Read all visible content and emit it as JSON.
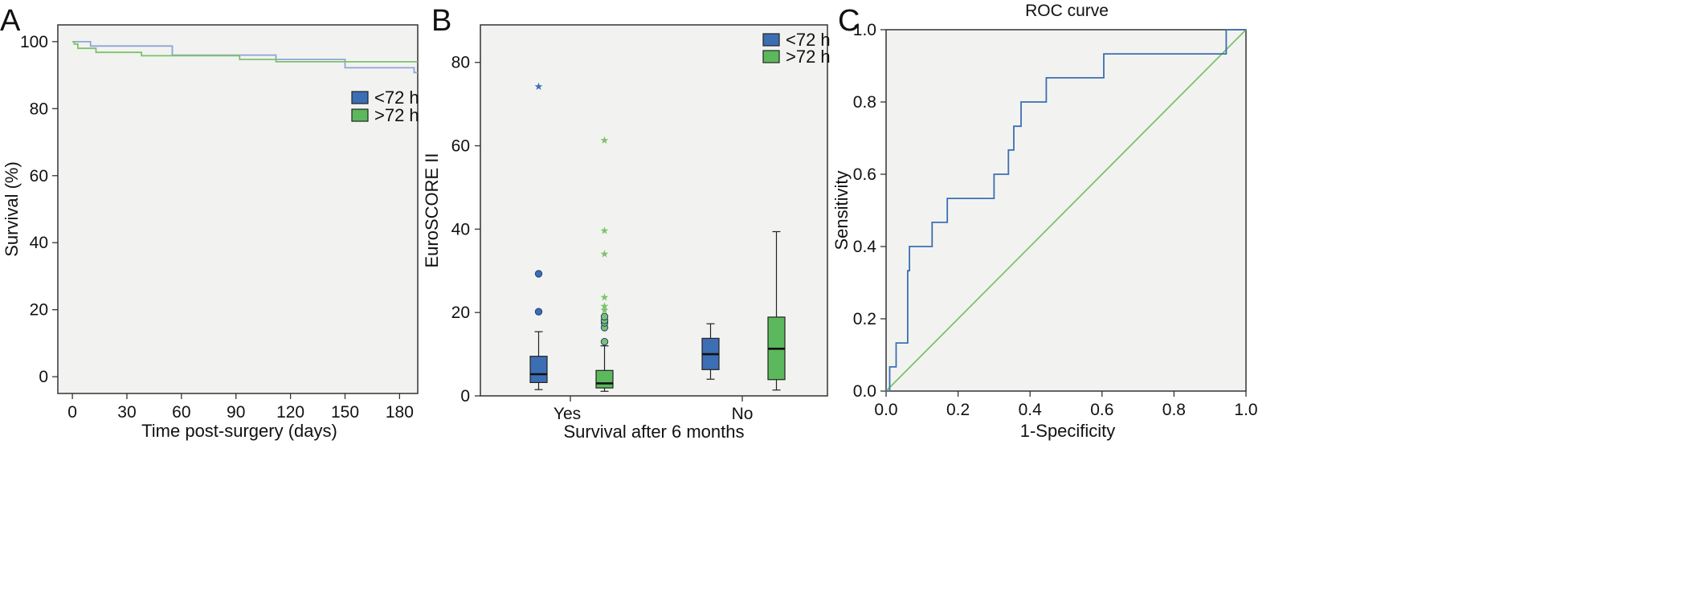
{
  "colors": {
    "blue": "#3c6eb4",
    "blue_light": "#8fa4d8",
    "green": "#7cc26b",
    "green_fill": "#5cb85c",
    "plot_bg": "#f2f3f0"
  },
  "chart_data": [
    {
      "panel": "A",
      "type": "line",
      "xlabel": "Time post-surgery (days)",
      "ylabel": "Survival (%)",
      "xlim": [
        -8,
        190
      ],
      "ylim": [
        -5,
        105
      ],
      "xticks": [
        0,
        30,
        60,
        90,
        120,
        150,
        180
      ],
      "yticks": [
        0,
        20,
        40,
        60,
        80,
        100
      ],
      "legend": "right",
      "series": [
        {
          "name": "<72 h",
          "color": "#8fa4d8",
          "x": [
            0,
            10,
            10,
            55,
            55,
            112,
            112,
            150,
            150,
            188,
            188,
            190
          ],
          "y": [
            100,
            100,
            98.7,
            98.7,
            96,
            96,
            94.7,
            94.7,
            92.2,
            92.2,
            90.8,
            90.8
          ]
        },
        {
          "name": ">72 h",
          "color": "#7cc26b",
          "x": [
            0,
            1,
            1,
            3,
            3,
            13,
            13,
            38,
            38,
            92,
            92,
            112,
            112,
            190
          ],
          "y": [
            100,
            100,
            99.3,
            99.3,
            98,
            98,
            96.8,
            96.8,
            95.8,
            95.8,
            94.7,
            94.7,
            94.0,
            94.0
          ]
        }
      ]
    },
    {
      "panel": "B",
      "type": "box",
      "xlabel": "Survival after 6 months",
      "ylabel": "EuroSCORE II",
      "categories": [
        "Yes",
        "No"
      ],
      "ylim": [
        0,
        89
      ],
      "yticks": [
        0,
        20,
        40,
        60,
        80
      ],
      "legend": "top-right",
      "series": [
        {
          "name": "<72 h",
          "color": "#3c6eb4",
          "boxes": [
            {
              "category": "Yes",
              "min": 1.5,
              "q1": 3.2,
              "median": 5.2,
              "q3": 9.5,
              "max": 15.4,
              "outliers": [
                20.2,
                29.3
              ],
              "extremes": [
                74.2
              ]
            },
            {
              "category": "No",
              "min": 4,
              "q1": 6.3,
              "median": 10,
              "q3": 13.8,
              "max": 17.3,
              "outliers": [],
              "extremes": []
            }
          ]
        },
        {
          "name": ">72 h",
          "color": "#5cb85c",
          "boxes": [
            {
              "category": "Yes",
              "min": 1.1,
              "q1": 1.9,
              "median": 3.0,
              "q3": 6.1,
              "max": 12.0,
              "outliers": [
                13.0,
                16.4,
                17.5,
                18.1,
                19.0
              ],
              "extremes": [
                20.5,
                21.5,
                23.6,
                34.0,
                39.6,
                61.3
              ]
            },
            {
              "category": "No",
              "min": 1.4,
              "q1": 3.9,
              "median": 11.3,
              "q3": 18.9,
              "max": 39.4,
              "outliers": [],
              "extremes": []
            }
          ]
        }
      ]
    },
    {
      "panel": "C",
      "type": "line",
      "title": "ROC curve",
      "xlabel": "1-Specificity",
      "ylabel": "Sensitivity",
      "xlim": [
        0,
        1
      ],
      "ylim": [
        0,
        1
      ],
      "xticks": [
        0.0,
        0.2,
        0.4,
        0.6,
        0.8,
        1.0
      ],
      "yticks": [
        0.0,
        0.2,
        0.4,
        0.6,
        0.8,
        1.0
      ],
      "series": [
        {
          "name": "",
          "color": "#3c6eb4",
          "x": [
            0,
            0.01,
            0.01,
            0.028,
            0.028,
            0.06,
            0.06,
            0.065,
            0.065,
            0.128,
            0.128,
            0.17,
            0.17,
            0.3,
            0.3,
            0.34,
            0.34,
            0.355,
            0.355,
            0.375,
            0.375,
            0.445,
            0.445,
            0.605,
            0.605,
            0.945,
            0.945,
            1.0
          ],
          "y": [
            0,
            0,
            0.067,
            0.067,
            0.133,
            0.133,
            0.333,
            0.333,
            0.4,
            0.4,
            0.467,
            0.467,
            0.533,
            0.533,
            0.6,
            0.6,
            0.667,
            0.667,
            0.733,
            0.733,
            0.8,
            0.8,
            0.867,
            0.867,
            0.933,
            0.933,
            1.0,
            1.0
          ]
        },
        {
          "name": "",
          "color": "#7cc26b",
          "x": [
            0,
            1
          ],
          "y": [
            0,
            1
          ]
        }
      ]
    }
  ]
}
